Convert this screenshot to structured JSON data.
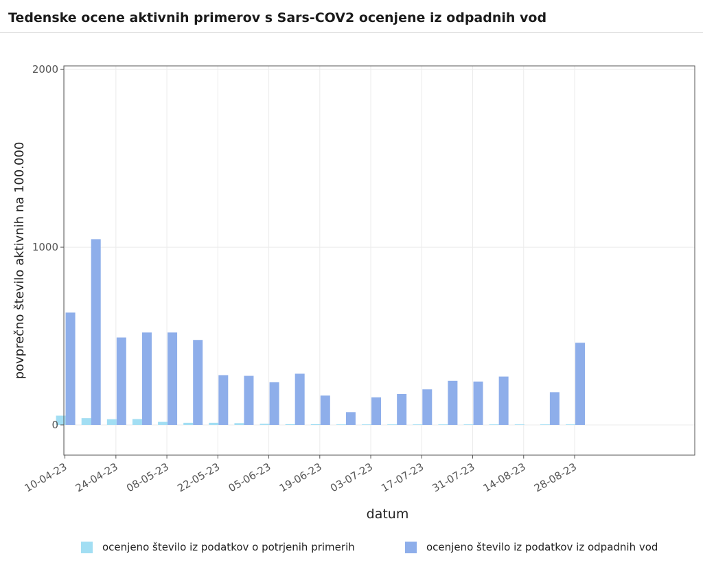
{
  "header": {
    "title": "Tedenske ocene aktivnih primerov s Sars-COV2 ocenjene iz odpadnih vod"
  },
  "colors": {
    "confirmed": "#a2def3",
    "wastewater": "#8eaeea",
    "grid": "#ebebeb",
    "axis": "#555555"
  },
  "chart_data": {
    "type": "bar",
    "title": "Tedenske ocene aktivnih primerov s Sars-COV2 ocenjene iz odpadnih vod",
    "xlabel": "datum",
    "ylabel": "povprečno število aktivnih na 100.000",
    "ylim": [
      -170,
      2020
    ],
    "yticks": [
      0,
      1000,
      2000
    ],
    "xticks": [
      "10-04-23",
      "24-04-23",
      "08-05-23",
      "22-05-23",
      "05-06-23",
      "19-06-23",
      "03-07-23",
      "17-07-23",
      "31-07-23",
      "14-08-23",
      "28-08-23"
    ],
    "x_range": [
      "10-04-23",
      "30-09-23"
    ],
    "grid": true,
    "legend_position": "bottom",
    "series": [
      {
        "name": "ocenjeno število iz podatkov o potrjenih primerih",
        "color": "#a2def3",
        "dates": [
          "10-04-23",
          "17-04-23",
          "24-04-23",
          "01-05-23",
          "08-05-23",
          "15-05-23",
          "22-05-23",
          "29-05-23",
          "05-06-23",
          "12-06-23",
          "19-06-23",
          "26-06-23",
          "03-07-23",
          "10-07-23",
          "17-07-23",
          "24-07-23",
          "31-07-23",
          "07-08-23",
          "14-08-23",
          "21-08-23",
          "28-08-23"
        ],
        "values": [
          52,
          38,
          32,
          33,
          17,
          12,
          12,
          10,
          6,
          4,
          4,
          3,
          3,
          3,
          3,
          3,
          3,
          3,
          3,
          3,
          3
        ]
      },
      {
        "name": "ocenjeno število iz podatkov iz odpadnih vod",
        "color": "#8eaeea",
        "dates": [
          "10-04-23",
          "17-04-23",
          "24-04-23",
          "01-05-23",
          "08-05-23",
          "15-05-23",
          "22-05-23",
          "29-05-23",
          "05-06-23",
          "12-06-23",
          "19-06-23",
          "26-06-23",
          "03-07-23",
          "10-07-23",
          "17-07-23",
          "24-07-23",
          "31-07-23",
          "07-08-23",
          "14-08-23",
          "21-08-23",
          "28-08-23"
        ],
        "values": [
          632,
          1045,
          492,
          520,
          520,
          478,
          280,
          276,
          240,
          288,
          165,
          72,
          155,
          174,
          200,
          248,
          244,
          272,
          null,
          184,
          462
        ]
      }
    ]
  },
  "legend": {
    "confirmed_label": "ocenjeno število iz podatkov o potrjenih primerih",
    "wastewater_label": "ocenjeno število iz podatkov iz odpadnih vod"
  }
}
